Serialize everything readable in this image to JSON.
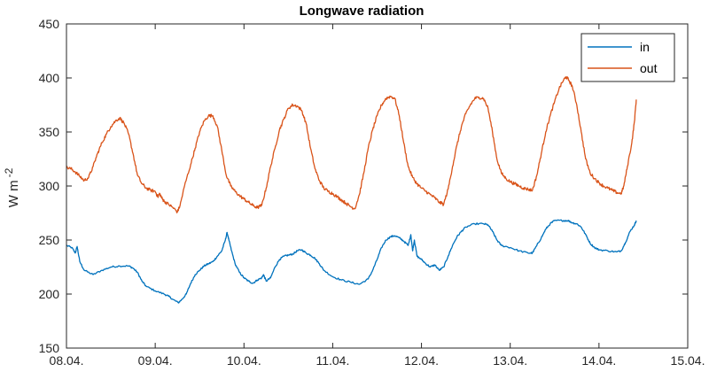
{
  "chart_data": {
    "type": "line",
    "title": "Longwave radiation",
    "xlabel": "",
    "ylabel": "W m",
    "ylabel_exponent": "-2",
    "ylim": [
      150,
      450
    ],
    "xlim": [
      0,
      7
    ],
    "x_unit": "days since 08.04.",
    "yticks": [
      150,
      200,
      250,
      300,
      350,
      400,
      450
    ],
    "xticks": [
      0,
      1,
      2,
      3,
      4,
      5,
      6,
      7
    ],
    "xtick_labels": [
      "08.04.",
      "09.04.",
      "10.04.",
      "11.04.",
      "12.04.",
      "13.04.",
      "14.04.",
      "15.04."
    ],
    "legend_location": "top-right",
    "grid": false,
    "series": [
      {
        "name": "in",
        "color": "#0072BD",
        "points": [
          [
            0.0,
            245
          ],
          [
            0.06,
            243
          ],
          [
            0.1,
            238
          ],
          [
            0.12,
            244
          ],
          [
            0.15,
            230
          ],
          [
            0.2,
            222
          ],
          [
            0.3,
            218
          ],
          [
            0.4,
            222
          ],
          [
            0.5,
            225
          ],
          [
            0.6,
            226
          ],
          [
            0.7,
            226
          ],
          [
            0.75,
            224
          ],
          [
            0.8,
            220
          ],
          [
            0.85,
            212
          ],
          [
            0.9,
            207
          ],
          [
            1.0,
            203
          ],
          [
            1.1,
            200
          ],
          [
            1.15,
            198
          ],
          [
            1.2,
            195
          ],
          [
            1.26,
            192
          ],
          [
            1.3,
            195
          ],
          [
            1.35,
            200
          ],
          [
            1.4,
            210
          ],
          [
            1.45,
            218
          ],
          [
            1.5,
            222
          ],
          [
            1.55,
            226
          ],
          [
            1.6,
            228
          ],
          [
            1.65,
            230
          ],
          [
            1.7,
            235
          ],
          [
            1.75,
            240
          ],
          [
            1.79,
            250
          ],
          [
            1.81,
            257
          ],
          [
            1.83,
            250
          ],
          [
            1.86,
            240
          ],
          [
            1.9,
            228
          ],
          [
            1.95,
            220
          ],
          [
            2.0,
            215
          ],
          [
            2.05,
            212
          ],
          [
            2.1,
            210
          ],
          [
            2.15,
            213
          ],
          [
            2.2,
            215
          ],
          [
            2.22,
            218
          ],
          [
            2.25,
            212
          ],
          [
            2.3,
            215
          ],
          [
            2.35,
            225
          ],
          [
            2.4,
            232
          ],
          [
            2.45,
            235
          ],
          [
            2.5,
            236
          ],
          [
            2.55,
            237
          ],
          [
            2.6,
            240
          ],
          [
            2.65,
            241
          ],
          [
            2.7,
            238
          ],
          [
            2.75,
            236
          ],
          [
            2.8,
            233
          ],
          [
            2.85,
            228
          ],
          [
            2.9,
            222
          ],
          [
            3.0,
            216
          ],
          [
            3.1,
            213
          ],
          [
            3.2,
            211
          ],
          [
            3.3,
            209
          ],
          [
            3.4,
            214
          ],
          [
            3.45,
            222
          ],
          [
            3.5,
            232
          ],
          [
            3.55,
            243
          ],
          [
            3.6,
            250
          ],
          [
            3.65,
            253
          ],
          [
            3.7,
            254
          ],
          [
            3.75,
            252
          ],
          [
            3.8,
            249
          ],
          [
            3.85,
            245
          ],
          [
            3.88,
            255
          ],
          [
            3.9,
            240
          ],
          [
            3.92,
            250
          ],
          [
            3.95,
            235
          ],
          [
            4.0,
            232
          ],
          [
            4.05,
            228
          ],
          [
            4.1,
            225
          ],
          [
            4.15,
            227
          ],
          [
            4.2,
            222
          ],
          [
            4.25,
            225
          ],
          [
            4.3,
            235
          ],
          [
            4.35,
            245
          ],
          [
            4.4,
            253
          ],
          [
            4.45,
            258
          ],
          [
            4.5,
            262
          ],
          [
            4.6,
            265
          ],
          [
            4.7,
            265
          ],
          [
            4.75,
            264
          ],
          [
            4.8,
            258
          ],
          [
            4.85,
            250
          ],
          [
            4.9,
            245
          ],
          [
            5.0,
            243
          ],
          [
            5.1,
            240
          ],
          [
            5.2,
            238
          ],
          [
            5.25,
            238
          ],
          [
            5.3,
            245
          ],
          [
            5.35,
            252
          ],
          [
            5.4,
            260
          ],
          [
            5.45,
            265
          ],
          [
            5.5,
            268
          ],
          [
            5.6,
            268
          ],
          [
            5.65,
            268
          ],
          [
            5.7,
            266
          ],
          [
            5.75,
            265
          ],
          [
            5.8,
            262
          ],
          [
            5.85,
            255
          ],
          [
            5.9,
            247
          ],
          [
            5.95,
            243
          ],
          [
            6.0,
            241
          ],
          [
            6.1,
            240
          ],
          [
            6.2,
            239
          ],
          [
            6.25,
            240
          ],
          [
            6.3,
            248
          ],
          [
            6.35,
            258
          ],
          [
            6.4,
            264
          ],
          [
            6.42,
            268
          ]
        ]
      },
      {
        "name": "out",
        "color": "#D95319",
        "points": [
          [
            0.0,
            317
          ],
          [
            0.05,
            316
          ],
          [
            0.1,
            313
          ],
          [
            0.15,
            309
          ],
          [
            0.2,
            305
          ],
          [
            0.25,
            308
          ],
          [
            0.3,
            318
          ],
          [
            0.35,
            330
          ],
          [
            0.4,
            340
          ],
          [
            0.45,
            348
          ],
          [
            0.5,
            355
          ],
          [
            0.55,
            360
          ],
          [
            0.6,
            363
          ],
          [
            0.65,
            358
          ],
          [
            0.7,
            348
          ],
          [
            0.75,
            330
          ],
          [
            0.8,
            310
          ],
          [
            0.85,
            302
          ],
          [
            0.9,
            298
          ],
          [
            0.95,
            296
          ],
          [
            1.0,
            295
          ],
          [
            1.03,
            290
          ],
          [
            1.05,
            293
          ],
          [
            1.08,
            288
          ],
          [
            1.1,
            286
          ],
          [
            1.15,
            283
          ],
          [
            1.2,
            280
          ],
          [
            1.25,
            276
          ],
          [
            1.28,
            282
          ],
          [
            1.33,
            300
          ],
          [
            1.4,
            320
          ],
          [
            1.45,
            335
          ],
          [
            1.5,
            350
          ],
          [
            1.55,
            360
          ],
          [
            1.6,
            365
          ],
          [
            1.65,
            365
          ],
          [
            1.7,
            355
          ],
          [
            1.75,
            333
          ],
          [
            1.8,
            310
          ],
          [
            1.85,
            300
          ],
          [
            1.9,
            295
          ],
          [
            1.95,
            291
          ],
          [
            2.0,
            288
          ],
          [
            2.05,
            285
          ],
          [
            2.1,
            282
          ],
          [
            2.15,
            280
          ],
          [
            2.2,
            282
          ],
          [
            2.25,
            298
          ],
          [
            2.3,
            318
          ],
          [
            2.35,
            335
          ],
          [
            2.4,
            352
          ],
          [
            2.45,
            362
          ],
          [
            2.5,
            372
          ],
          [
            2.55,
            375
          ],
          [
            2.6,
            374
          ],
          [
            2.65,
            370
          ],
          [
            2.7,
            358
          ],
          [
            2.75,
            335
          ],
          [
            2.8,
            316
          ],
          [
            2.85,
            305
          ],
          [
            2.9,
            298
          ],
          [
            2.95,
            295
          ],
          [
            3.0,
            293
          ],
          [
            3.05,
            290
          ],
          [
            3.1,
            287
          ],
          [
            3.15,
            284
          ],
          [
            3.2,
            281
          ],
          [
            3.25,
            279
          ],
          [
            3.3,
            292
          ],
          [
            3.35,
            312
          ],
          [
            3.4,
            335
          ],
          [
            3.45,
            352
          ],
          [
            3.5,
            365
          ],
          [
            3.55,
            375
          ],
          [
            3.6,
            381
          ],
          [
            3.65,
            383
          ],
          [
            3.7,
            381
          ],
          [
            3.75,
            365
          ],
          [
            3.8,
            340
          ],
          [
            3.85,
            318
          ],
          [
            3.9,
            308
          ],
          [
            3.95,
            302
          ],
          [
            4.0,
            298
          ],
          [
            4.05,
            295
          ],
          [
            4.1,
            292
          ],
          [
            4.15,
            289
          ],
          [
            4.2,
            285
          ],
          [
            4.25,
            283
          ],
          [
            4.3,
            297
          ],
          [
            4.35,
            318
          ],
          [
            4.4,
            338
          ],
          [
            4.45,
            355
          ],
          [
            4.5,
            367
          ],
          [
            4.55,
            375
          ],
          [
            4.6,
            381
          ],
          [
            4.65,
            382
          ],
          [
            4.7,
            381
          ],
          [
            4.75,
            372
          ],
          [
            4.8,
            350
          ],
          [
            4.85,
            325
          ],
          [
            4.9,
            312
          ],
          [
            4.95,
            307
          ],
          [
            5.0,
            304
          ],
          [
            5.05,
            302
          ],
          [
            5.1,
            300
          ],
          [
            5.15,
            298
          ],
          [
            5.2,
            297
          ],
          [
            5.25,
            296
          ],
          [
            5.3,
            310
          ],
          [
            5.35,
            330
          ],
          [
            5.4,
            350
          ],
          [
            5.45,
            365
          ],
          [
            5.5,
            378
          ],
          [
            5.55,
            390
          ],
          [
            5.6,
            398
          ],
          [
            5.63,
            401
          ],
          [
            5.66,
            398
          ],
          [
            5.7,
            392
          ],
          [
            5.75,
            375
          ],
          [
            5.8,
            350
          ],
          [
            5.85,
            325
          ],
          [
            5.9,
            312
          ],
          [
            5.95,
            307
          ],
          [
            6.0,
            303
          ],
          [
            6.05,
            300
          ],
          [
            6.1,
            298
          ],
          [
            6.15,
            296
          ],
          [
            6.2,
            294
          ],
          [
            6.25,
            293
          ],
          [
            6.28,
            300
          ],
          [
            6.32,
            318
          ],
          [
            6.37,
            340
          ],
          [
            6.4,
            360
          ],
          [
            6.42,
            380
          ]
        ]
      }
    ]
  }
}
